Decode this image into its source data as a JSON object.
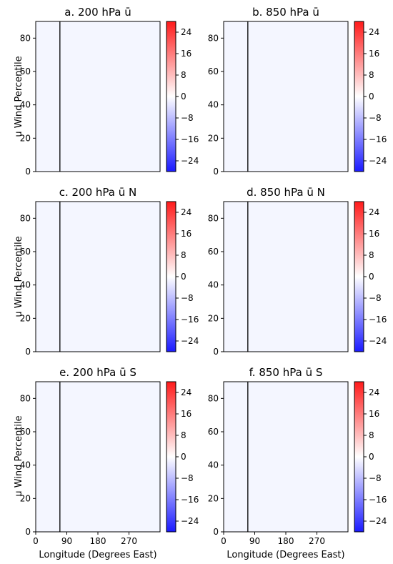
{
  "chart_data": {
    "type": "heatmap",
    "ylabel": "u Wind Percentile",
    "xlabel": "Longitude (Degrees East)",
    "x_ticks": [
      "0",
      "90",
      "180",
      "270"
    ],
    "y_ticks": [
      "0",
      "20",
      "40",
      "60",
      "80"
    ],
    "colorbar_ticks": [
      "24",
      "16",
      "8",
      "0",
      "−8",
      "−16",
      "−24"
    ],
    "colorbar_range": [
      -28,
      28
    ],
    "colormap": {
      "low": "#1a1aff",
      "mid": "#ffffff",
      "high": "#ff1a1a"
    },
    "xlim": [
      0,
      360
    ],
    "ylim": [
      0,
      90
    ],
    "reference_longitude": 70,
    "panels": [
      {
        "title": "a. 200 hPa ū"
      },
      {
        "title": "b. 850 hPa ū"
      },
      {
        "title": "c. 200 hPa ū N"
      },
      {
        "title": "d. 850 hPa ū N"
      },
      {
        "title": "e. 200 hPa ū S"
      },
      {
        "title": "f. 850 hPa ū S"
      }
    ]
  }
}
